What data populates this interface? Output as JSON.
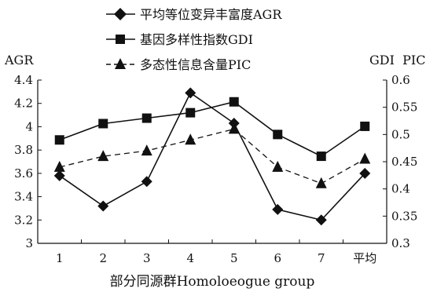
{
  "chart_data": {
    "type": "line",
    "categories": [
      "1",
      "2",
      "3",
      "4",
      "5",
      "6",
      "7",
      "平均"
    ],
    "xlabel": "部分同源群Homoloeogue group",
    "left_axis": {
      "label": "AGR",
      "ylim": [
        3,
        4.4
      ],
      "ticks": [
        "3",
        "3.2",
        "3.4",
        "3.6",
        "3.8",
        "4",
        "4.2",
        "4.4"
      ],
      "tick_values": [
        3,
        3.2,
        3.4,
        3.6,
        3.8,
        4,
        4.2,
        4.4
      ]
    },
    "right_axis": {
      "label": "GDI  PIC",
      "ylim": [
        0.3,
        0.6
      ],
      "ticks": [
        "0.3",
        "0.35",
        "0.4",
        "0.45",
        "0.5",
        "0.55",
        "0.6"
      ],
      "tick_values": [
        0.3,
        0.35,
        0.4,
        0.45,
        0.5,
        0.55,
        0.6
      ]
    },
    "series": [
      {
        "name": "平均等位变异丰富度AGR",
        "axis": "left",
        "marker": "diamond",
        "line_style": "solid",
        "values": [
          3.58,
          3.32,
          3.53,
          4.29,
          4.03,
          3.29,
          3.2,
          3.6
        ]
      },
      {
        "name": "基因多样性指数GDI",
        "axis": "right",
        "marker": "square",
        "line_style": "solid",
        "values": [
          0.49,
          0.52,
          0.53,
          0.54,
          0.56,
          0.5,
          0.46,
          0.515
        ]
      },
      {
        "name": "多态性信息含量PIC",
        "axis": "right",
        "marker": "triangle",
        "line_style": "dashed",
        "values": [
          0.44,
          0.46,
          0.47,
          0.49,
          0.51,
          0.44,
          0.41,
          0.455
        ]
      }
    ],
    "legend_position": "top",
    "grid": false,
    "colors": {
      "line": "#111111",
      "background": "#ffffff"
    }
  }
}
